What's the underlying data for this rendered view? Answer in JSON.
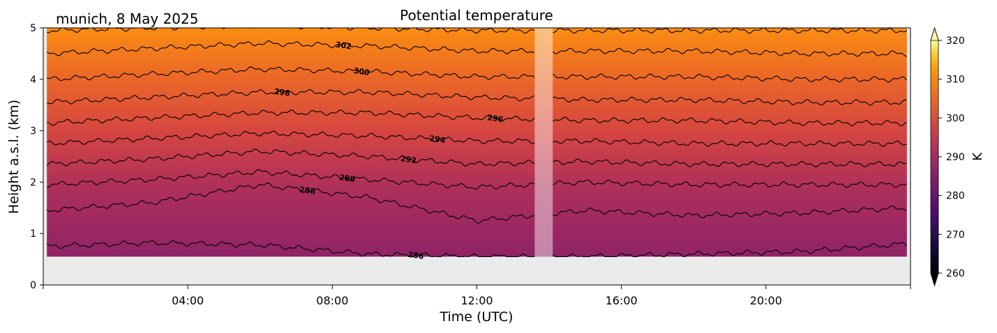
{
  "figure": {
    "location_date": "munich, 8 May 2025",
    "title": "Potential temperature"
  },
  "chart_data": {
    "type": "heatmap",
    "title": "Potential temperature",
    "xlabel": "Time (UTC)",
    "ylabel": "Height a.s.l. (km)",
    "x_unit": "hours UTC",
    "xlim": [
      0,
      24
    ],
    "ylim": [
      0,
      5
    ],
    "xticks": [
      4,
      8,
      12,
      16,
      20
    ],
    "xtick_labels": [
      "04:00",
      "08:00",
      "12:00",
      "16:00",
      "20:00"
    ],
    "yticks": [
      0,
      1,
      2,
      3,
      4,
      5
    ],
    "ytick_labels": [
      "0",
      "1",
      "2",
      "3",
      "4",
      "5"
    ],
    "data_height_range_km": [
      0.55,
      5
    ],
    "data_time_range_h": [
      0.1,
      23.9
    ],
    "missing_data_gap_h": [
      13.6,
      14.1
    ],
    "colormap": "inferno",
    "colorbar": {
      "label": "K",
      "vmin": 260,
      "vmax": 320,
      "ticks": [
        260,
        270,
        280,
        290,
        300,
        310,
        320
      ],
      "tick_labels": [
        "260",
        "270",
        "280",
        "290",
        "300",
        "310",
        "320"
      ],
      "extend": "both"
    },
    "contours": [
      {
        "level": 286,
        "label": "286",
        "height_km": [
          0.75,
          0.82,
          0.78,
          0.6,
          0.55,
          0.55,
          0.6,
          0.65,
          0.8
        ],
        "label_time_h": 10.3
      },
      {
        "level": 288,
        "label": "288",
        "height_km": [
          1.45,
          1.6,
          1.95,
          1.7,
          1.25,
          1.45,
          1.35,
          1.4,
          1.5
        ],
        "label_time_h": 7.3
      },
      {
        "level": 290,
        "label": "290",
        "height_km": [
          1.95,
          2.05,
          2.2,
          2.05,
          1.9,
          2.0,
          1.95,
          1.95,
          1.95
        ],
        "label_time_h": 8.4
      },
      {
        "level": 292,
        "label": "292",
        "height_km": [
          2.35,
          2.45,
          2.6,
          2.5,
          2.35,
          2.4,
          2.35,
          2.35,
          2.35
        ],
        "label_time_h": 10.1
      },
      {
        "level": 294,
        "label": "294",
        "height_km": [
          2.75,
          2.85,
          2.95,
          2.9,
          2.8,
          2.8,
          2.75,
          2.75,
          2.75
        ],
        "label_time_h": 10.9
      },
      {
        "level": 296,
        "label": "296",
        "height_km": [
          3.15,
          3.25,
          3.35,
          3.35,
          3.25,
          3.2,
          3.2,
          3.15,
          3.15
        ],
        "label_time_h": 12.5
      },
      {
        "level": 298,
        "label": "298",
        "height_km": [
          3.55,
          3.65,
          3.75,
          3.75,
          3.65,
          3.6,
          3.6,
          3.55,
          3.55
        ],
        "label_time_h": 6.6
      },
      {
        "level": 300,
        "label": "300",
        "height_km": [
          4.0,
          4.1,
          4.2,
          4.15,
          4.05,
          4.05,
          4.05,
          4.0,
          4.0
        ],
        "label_time_h": 8.8
      },
      {
        "level": 302,
        "label": "302",
        "height_km": [
          4.5,
          4.6,
          4.7,
          4.65,
          4.55,
          4.55,
          4.55,
          4.5,
          4.5
        ],
        "label_time_h": 8.3
      },
      {
        "level": 304,
        "label": "",
        "height_km": [
          4.95,
          5.0,
          5.05,
          5.0,
          4.95,
          4.95,
          4.95,
          4.95,
          4.95
        ],
        "label_time_h": null
      }
    ],
    "contour_times_h": [
      0.1,
      3,
      6,
      9,
      12,
      15,
      18,
      21,
      23.9
    ]
  }
}
